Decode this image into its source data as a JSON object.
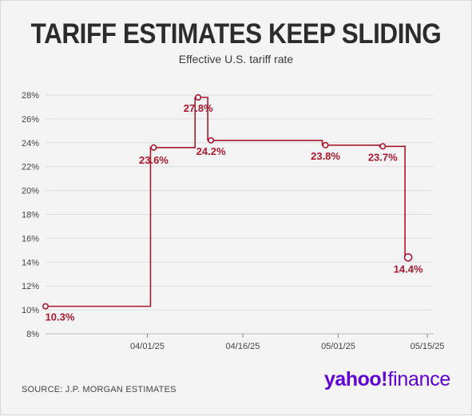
{
  "header": {
    "title": "TARIFF ESTIMATES KEEP SLIDING",
    "subtitle": "Effective U.S. tariff rate"
  },
  "footer": {
    "source": "SOURCE: J.P. MORGAN ESTIMATES",
    "logo_text": "yahoo!finance",
    "logo_yahoo": "yahoo",
    "logo_bang": "!",
    "logo_finance": "finance"
  },
  "colors": {
    "accent": "#a8192e",
    "text": "#2c2c2c",
    "grid": "#dcdcdc",
    "logo": "#6001d2"
  },
  "chart_data": {
    "type": "line",
    "step": true,
    "title": "TARIFF ESTIMATES KEEP SLIDING",
    "subtitle": "Effective U.S. tariff rate",
    "xlabel": "",
    "ylabel": "",
    "ylim": [
      8,
      28
    ],
    "yticks": [
      8,
      10,
      12,
      14,
      16,
      18,
      20,
      22,
      24,
      26,
      28
    ],
    "ytick_labels": [
      "8%",
      "10%",
      "12%",
      "14%",
      "16%",
      "18%",
      "20%",
      "22%",
      "24%",
      "26%",
      "28%"
    ],
    "xlim": [
      "2025-03-16",
      "2025-05-16"
    ],
    "xticks": [
      "2025-04-01",
      "2025-04-16",
      "2025-05-01",
      "2025-05-15"
    ],
    "xtick_labels": [
      "04/01/25",
      "04/16/25",
      "05/01/25",
      "05/15/25"
    ],
    "grid": true,
    "series": [
      {
        "name": "",
        "points": [
          {
            "x": "2025-03-16",
            "y": 10.3,
            "label": "10.3%"
          },
          {
            "x": "2025-04-02",
            "y": 23.6,
            "label": "23.6%"
          },
          {
            "x": "2025-04-09",
            "y": 27.8,
            "label": "27.8%"
          },
          {
            "x": "2025-04-11",
            "y": 24.2,
            "label": "24.2%"
          },
          {
            "x": "2025-04-29",
            "y": 23.8,
            "label": "23.8%"
          },
          {
            "x": "2025-05-08",
            "y": 23.7,
            "label": "23.7%"
          },
          {
            "x": "2025-05-12",
            "y": 14.4,
            "label": "14.4%"
          }
        ]
      }
    ]
  }
}
